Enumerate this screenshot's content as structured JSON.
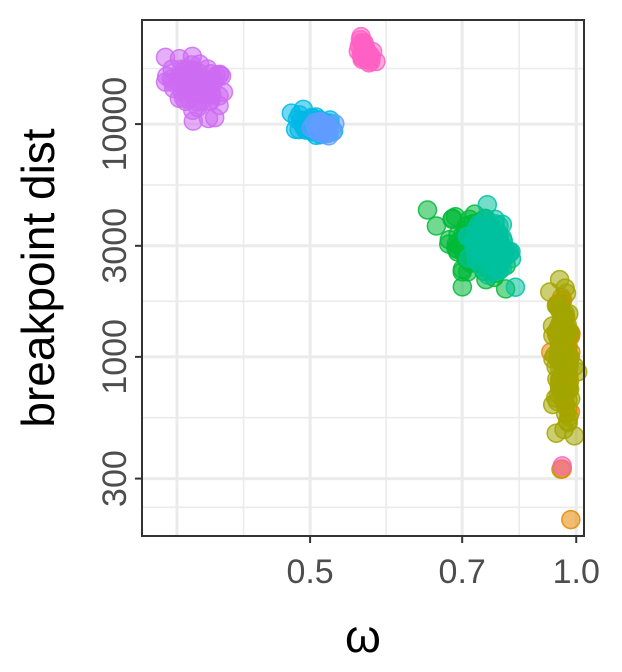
{
  "chart_data": {
    "type": "scatter",
    "xlabel": "ω",
    "ylabel": "breakpoint dist",
    "x_scale": "reciprocal",
    "y_scale": "log",
    "xlim": [
      0.38,
      1.03
    ],
    "ylim": [
      170,
      28000
    ],
    "x_ticks": [
      0.5,
      0.7,
      1.0
    ],
    "x_tick_labels": [
      "0.5",
      "0.7",
      "1.0"
    ],
    "y_ticks": [
      300,
      1000,
      3000,
      10000
    ],
    "y_tick_labels": [
      "300",
      "1000",
      "3000",
      "10000"
    ],
    "grid": true,
    "legend": "none",
    "clusters": [
      {
        "color": "#cd6cf2",
        "x_center": 0.413,
        "y_center": 14500,
        "x_spread": 0.012,
        "y_spread_log": 0.07,
        "n": 70
      },
      {
        "color": "#ff61c3",
        "x_center": 0.557,
        "y_center": 20200,
        "x_spread": 0.008,
        "y_spread_log": 0.03,
        "n": 25
      },
      {
        "color": "#00b8e5",
        "x_center": 0.505,
        "y_center": 9900,
        "x_spread": 0.012,
        "y_spread_log": 0.03,
        "n": 55
      },
      {
        "color": "#619cff",
        "x_center": 0.515,
        "y_center": 9600,
        "x_spread": 0.008,
        "y_spread_log": 0.025,
        "n": 20
      },
      {
        "color": "#00ba38",
        "x_center": 0.725,
        "y_center": 3000,
        "x_spread": 0.03,
        "y_spread_log": 0.07,
        "n": 110
      },
      {
        "color": "#00c19f",
        "x_center": 0.76,
        "y_center": 3000,
        "x_spread": 0.03,
        "y_spread_log": 0.06,
        "n": 90
      },
      {
        "color": "#e58700",
        "x_center": 0.955,
        "y_center": 1000,
        "x_spread": 0.02,
        "y_spread_log": 0.13,
        "n": 60
      },
      {
        "color": "#a3a500",
        "x_center": 0.955,
        "y_center": 1000,
        "x_spread": 0.02,
        "y_spread_log": 0.15,
        "n": 110
      }
    ],
    "outliers": [
      {
        "x": 0.95,
        "y": 330,
        "color": "#e58700"
      },
      {
        "x": 0.95,
        "y": 340,
        "color": "#ff61c3"
      },
      {
        "x": 0.98,
        "y": 200,
        "color": "#e58700"
      },
      {
        "x": 0.93,
        "y": 470,
        "color": "#a3a500"
      }
    ]
  }
}
